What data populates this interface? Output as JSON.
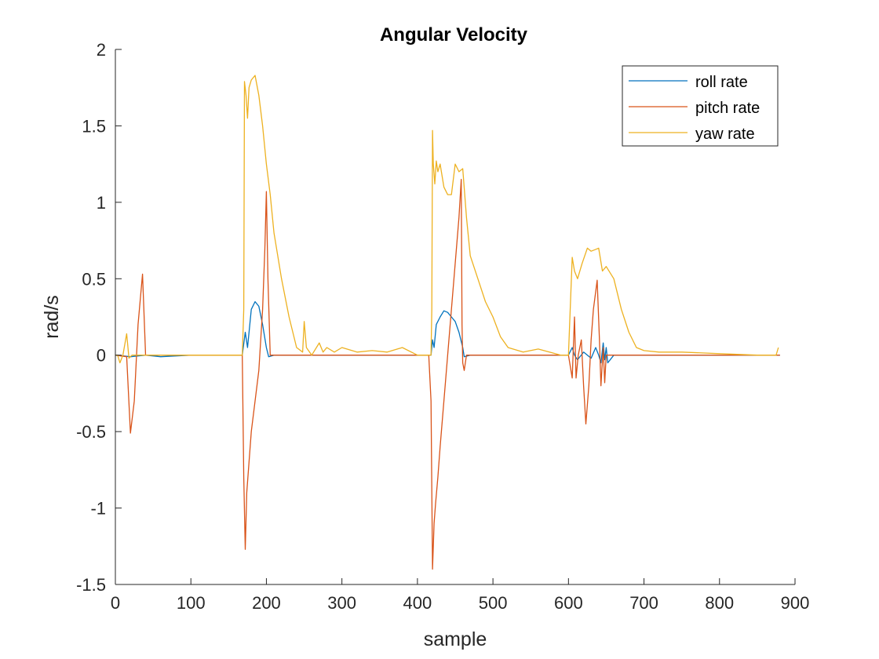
{
  "chart_data": {
    "type": "line",
    "title": "Angular Velocity",
    "xlabel": "sample",
    "ylabel": "rad/s",
    "xlim": [
      0,
      900
    ],
    "ylim": [
      -1.5,
      2
    ],
    "xticks": [
      0,
      100,
      200,
      300,
      400,
      500,
      600,
      700,
      800,
      900
    ],
    "yticks": [
      -1.5,
      -1,
      -0.5,
      0,
      0.5,
      1,
      1.5,
      2
    ],
    "xtick_labels": [
      "0",
      "100",
      "200",
      "300",
      "400",
      "500",
      "600",
      "700",
      "800",
      "900"
    ],
    "ytick_labels": [
      "-1.5",
      "-1",
      "-0.5",
      "0",
      "0.5",
      "1",
      "1.5",
      "2"
    ],
    "grid": false,
    "legend_position": "top-right",
    "series": [
      {
        "name": "roll rate",
        "color": "#0072BD",
        "x": [
          0,
          20,
          40,
          60,
          100,
          150,
          168,
          172,
          175,
          178,
          180,
          185,
          190,
          195,
          200,
          203,
          210,
          250,
          300,
          350,
          400,
          418,
          420,
          422,
          425,
          430,
          435,
          440,
          445,
          450,
          455,
          460,
          462,
          470,
          500,
          550,
          600,
          605,
          608,
          612,
          620,
          630,
          636,
          640,
          643,
          646,
          648,
          650,
          652,
          660,
          700,
          750,
          800,
          850,
          880
        ],
        "y": [
          0,
          -0.01,
          0,
          -0.01,
          0,
          0,
          0,
          0.15,
          0.05,
          0.2,
          0.3,
          0.35,
          0.32,
          0.2,
          0.05,
          -0.01,
          0,
          0,
          0,
          0,
          0,
          0,
          0.1,
          0.05,
          0.2,
          0.25,
          0.29,
          0.28,
          0.25,
          0.22,
          0.15,
          0.05,
          -0.01,
          0,
          0,
          0,
          0,
          0.05,
          0,
          -0.03,
          0.02,
          -0.02,
          0.05,
          0,
          -0.05,
          0.08,
          -0.03,
          0.05,
          -0.05,
          0,
          0,
          0,
          0,
          0,
          0
        ]
      },
      {
        "name": "pitch rate",
        "color": "#D95319",
        "x": [
          0,
          15,
          20,
          25,
          30,
          36,
          40,
          60,
          100,
          150,
          168,
          170,
          172,
          174,
          177,
          180,
          185,
          190,
          195,
          198,
          200,
          202,
          205,
          210,
          250,
          300,
          350,
          400,
          415,
          418,
          420,
          422,
          424,
          427,
          430,
          435,
          440,
          445,
          450,
          455,
          458,
          459,
          460,
          462,
          465,
          470,
          500,
          550,
          590,
          600,
          605,
          608,
          610,
          613,
          617,
          620,
          623,
          627,
          630,
          633,
          638,
          641,
          643,
          646,
          648,
          650,
          655,
          660,
          700,
          750,
          800,
          850,
          880
        ],
        "y": [
          0,
          -0.01,
          -0.51,
          -0.3,
          0.2,
          0.53,
          0,
          0,
          0,
          0,
          0,
          -0.8,
          -1.27,
          -0.9,
          -0.7,
          -0.5,
          -0.3,
          -0.1,
          0.3,
          0.7,
          1.07,
          0.5,
          0,
          0,
          0,
          0,
          0,
          0,
          0,
          -0.3,
          -1.4,
          -1.1,
          -0.97,
          -0.8,
          -0.6,
          -0.3,
          0,
          0.3,
          0.6,
          0.9,
          1.15,
          0.2,
          -0.05,
          -0.1,
          0,
          0,
          0,
          0,
          0,
          0,
          -0.15,
          0.25,
          -0.15,
          0,
          0.1,
          -0.2,
          -0.45,
          -0.2,
          0.1,
          0.3,
          0.49,
          0.1,
          -0.2,
          0.05,
          -0.18,
          0,
          0,
          0,
          0,
          0,
          0,
          0,
          0
        ]
      },
      {
        "name": "yaw rate",
        "color": "#EDB120",
        "x": [
          0,
          3,
          6,
          10,
          15,
          18,
          22,
          30,
          40,
          60,
          100,
          150,
          168,
          170,
          171,
          173,
          175,
          177,
          180,
          185,
          190,
          195,
          200,
          205,
          210,
          220,
          230,
          240,
          248,
          250,
          253,
          260,
          270,
          275,
          280,
          290,
          300,
          320,
          340,
          360,
          380,
          400,
          418,
          419,
          420,
          421,
          423,
          425,
          427,
          430,
          435,
          440,
          445,
          450,
          455,
          460,
          465,
          470,
          480,
          490,
          500,
          510,
          520,
          540,
          560,
          590,
          600,
          605,
          608,
          612,
          618,
          625,
          630,
          635,
          640,
          645,
          650,
          660,
          670,
          680,
          690,
          700,
          720,
          750,
          800,
          850,
          875,
          878
        ],
        "y": [
          0,
          0,
          -0.05,
          0,
          0.14,
          -0.02,
          0,
          0,
          0,
          0,
          0,
          0,
          0,
          0.3,
          1.79,
          1.7,
          1.55,
          1.75,
          1.8,
          1.83,
          1.7,
          1.5,
          1.25,
          1.05,
          0.8,
          0.5,
          0.25,
          0.05,
          0.02,
          0.22,
          0.05,
          0,
          0.08,
          0.02,
          0.05,
          0.02,
          0.05,
          0.02,
          0.03,
          0.02,
          0.05,
          0,
          0,
          0.3,
          1.47,
          1.25,
          1.12,
          1.27,
          1.2,
          1.25,
          1.1,
          1.05,
          1.05,
          1.25,
          1.2,
          1.22,
          0.9,
          0.65,
          0.5,
          0.35,
          0.25,
          0.12,
          0.05,
          0.02,
          0.04,
          0,
          0,
          0.64,
          0.55,
          0.5,
          0.6,
          0.7,
          0.68,
          0.69,
          0.7,
          0.55,
          0.58,
          0.5,
          0.3,
          0.15,
          0.05,
          0.03,
          0.02,
          0.02,
          0.01,
          0,
          0,
          0.05
        ]
      }
    ]
  }
}
